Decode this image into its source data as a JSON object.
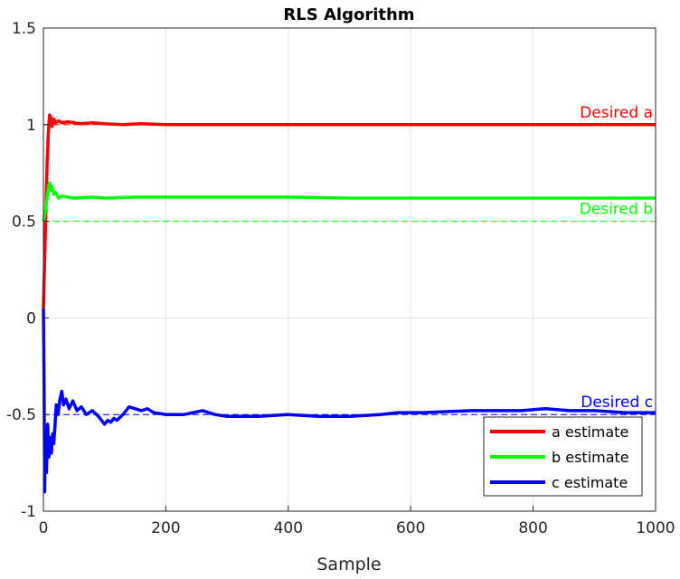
{
  "chart_data": {
    "type": "line",
    "title": "RLS Algorithm",
    "xlabel": "Sample",
    "ylabel": "",
    "xlim": [
      0,
      1000
    ],
    "ylim": [
      -1,
      1.5
    ],
    "xticks": [
      "0",
      "200",
      "400",
      "600",
      "800",
      "1000"
    ],
    "yticks": [
      "-1",
      "-0.5",
      "0",
      "0.5",
      "1",
      "1.5"
    ],
    "grid": true,
    "legend_position": "bottom-right",
    "series": [
      {
        "name": "a estimate",
        "color": "#ff0000",
        "points": [
          [
            0,
            0.05
          ],
          [
            2,
            0.3
          ],
          [
            4,
            0.55
          ],
          [
            6,
            0.8
          ],
          [
            8,
            0.95
          ],
          [
            10,
            1.05
          ],
          [
            12,
            1.04
          ],
          [
            14,
            0.99
          ],
          [
            17,
            1.03
          ],
          [
            20,
            1.01
          ],
          [
            25,
            1.02
          ],
          [
            30,
            1.01
          ],
          [
            40,
            1.015
          ],
          [
            60,
            1.005
          ],
          [
            80,
            1.01
          ],
          [
            100,
            1.005
          ],
          [
            130,
            1.0
          ],
          [
            160,
            1.005
          ],
          [
            200,
            1.0
          ],
          [
            300,
            1.0
          ],
          [
            400,
            1.0
          ],
          [
            500,
            1.0
          ],
          [
            600,
            1.0
          ],
          [
            700,
            1.0
          ],
          [
            800,
            1.0
          ],
          [
            900,
            1.0
          ],
          [
            1000,
            1.0
          ]
        ]
      },
      {
        "name": "b estimate",
        "color": "#00ff00",
        "points": [
          [
            0,
            0.5
          ],
          [
            3,
            0.55
          ],
          [
            6,
            0.62
          ],
          [
            8,
            0.67
          ],
          [
            10,
            0.7
          ],
          [
            12,
            0.66
          ],
          [
            14,
            0.68
          ],
          [
            17,
            0.64
          ],
          [
            20,
            0.65
          ],
          [
            25,
            0.62
          ],
          [
            30,
            0.63
          ],
          [
            40,
            0.625
          ],
          [
            50,
            0.62
          ],
          [
            80,
            0.625
          ],
          [
            100,
            0.62
          ],
          [
            150,
            0.625
          ],
          [
            200,
            0.625
          ],
          [
            300,
            0.625
          ],
          [
            400,
            0.625
          ],
          [
            500,
            0.62
          ],
          [
            600,
            0.62
          ],
          [
            700,
            0.62
          ],
          [
            800,
            0.62
          ],
          [
            900,
            0.62
          ],
          [
            1000,
            0.62
          ]
        ]
      },
      {
        "name": "c estimate",
        "color": "#0000ff",
        "points": [
          [
            0,
            0.05
          ],
          [
            1,
            -0.3
          ],
          [
            2,
            -0.9
          ],
          [
            3,
            -0.6
          ],
          [
            5,
            -0.8
          ],
          [
            7,
            -0.55
          ],
          [
            9,
            -0.72
          ],
          [
            11,
            -0.62
          ],
          [
            13,
            -0.7
          ],
          [
            15,
            -0.6
          ],
          [
            17,
            -0.65
          ],
          [
            19,
            -0.55
          ],
          [
            21,
            -0.45
          ],
          [
            24,
            -0.5
          ],
          [
            27,
            -0.42
          ],
          [
            30,
            -0.38
          ],
          [
            33,
            -0.45
          ],
          [
            37,
            -0.42
          ],
          [
            42,
            -0.47
          ],
          [
            48,
            -0.43
          ],
          [
            55,
            -0.48
          ],
          [
            62,
            -0.46
          ],
          [
            70,
            -0.5
          ],
          [
            80,
            -0.48
          ],
          [
            90,
            -0.51
          ],
          [
            100,
            -0.55
          ],
          [
            105,
            -0.53
          ],
          [
            110,
            -0.54
          ],
          [
            115,
            -0.52
          ],
          [
            120,
            -0.53
          ],
          [
            130,
            -0.5
          ],
          [
            140,
            -0.46
          ],
          [
            150,
            -0.47
          ],
          [
            160,
            -0.48
          ],
          [
            170,
            -0.47
          ],
          [
            180,
            -0.49
          ],
          [
            200,
            -0.5
          ],
          [
            230,
            -0.5
          ],
          [
            260,
            -0.48
          ],
          [
            280,
            -0.5
          ],
          [
            300,
            -0.51
          ],
          [
            350,
            -0.51
          ],
          [
            400,
            -0.5
          ],
          [
            450,
            -0.51
          ],
          [
            500,
            -0.51
          ],
          [
            550,
            -0.5
          ],
          [
            580,
            -0.49
          ],
          [
            620,
            -0.49
          ],
          [
            700,
            -0.48
          ],
          [
            780,
            -0.48
          ],
          [
            820,
            -0.47
          ],
          [
            860,
            -0.48
          ],
          [
            900,
            -0.48
          ],
          [
            950,
            -0.49
          ],
          [
            1000,
            -0.49
          ]
        ]
      }
    ],
    "reference_lines": [
      {
        "label": "Desired a",
        "y": 1.0,
        "color": "#ff0000"
      },
      {
        "label": "Desired b",
        "y": 0.5,
        "color": "#00ff00"
      },
      {
        "label": "Desired c",
        "y": -0.5,
        "color": "#0000ff"
      }
    ]
  }
}
